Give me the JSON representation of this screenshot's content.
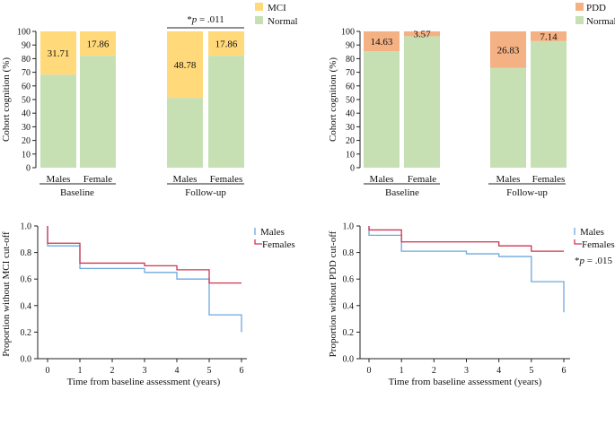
{
  "colors": {
    "normal": "#c6e0b4",
    "mci": "#ffd97a",
    "pdd": "#f4b183",
    "males_line": "#6fa8dc",
    "females_line": "#d0344f",
    "axis": "#222222"
  },
  "chart_data": [
    {
      "id": "mci_bars",
      "type": "bar",
      "stacked": true,
      "ylabel": "Cohort cognition (%)",
      "ylim": [
        0,
        100
      ],
      "yticks": [
        "0",
        "10",
        "20",
        "30",
        "40",
        "50",
        "60",
        "70",
        "80",
        "90",
        "100"
      ],
      "categories": [
        "Males",
        "Female",
        "Males",
        "Females"
      ],
      "groups": [
        "Baseline",
        "Follow-up"
      ],
      "series": [
        {
          "name": "Normal",
          "values": [
            68.29,
            82.14,
            51.22,
            82.14
          ]
        },
        {
          "name": "MCI",
          "values": [
            31.71,
            17.86,
            48.78,
            17.86
          ]
        }
      ],
      "data_labels": [
        "31.71",
        "17.86",
        "48.78",
        "17.86"
      ],
      "legend": [
        "MCI",
        "Normal"
      ],
      "annotation": {
        "star": "*",
        "p": "p",
        "rest": " = .011"
      }
    },
    {
      "id": "pdd_bars",
      "type": "bar",
      "stacked": true,
      "ylabel": "Cohort cognition (%)",
      "ylim": [
        0,
        100
      ],
      "yticks": [
        "0",
        "10",
        "20",
        "30",
        "40",
        "50",
        "60",
        "70",
        "80",
        "90",
        "100"
      ],
      "categories": [
        "Males",
        "Female",
        "Males",
        "Females"
      ],
      "groups": [
        "Baseline",
        "Follow-up"
      ],
      "series": [
        {
          "name": "Normal",
          "values": [
            85.37,
            96.43,
            73.17,
            92.86
          ]
        },
        {
          "name": "PDD",
          "values": [
            14.63,
            3.57,
            26.83,
            7.14
          ]
        }
      ],
      "data_labels": [
        "14.63",
        "3.57",
        "26.83",
        "7.14"
      ],
      "legend": [
        "PDD",
        "Normal"
      ]
    },
    {
      "id": "mci_km",
      "type": "line",
      "step": true,
      "xlabel": "Time from baseline assessment (years)",
      "ylabel": "Proportion without MCI cut-off",
      "xlim": [
        0,
        6
      ],
      "ylim": [
        0,
        1
      ],
      "xticks": [
        "0",
        "1",
        "2",
        "3",
        "4",
        "5",
        "6"
      ],
      "yticks": [
        "0.0",
        "0.2",
        "0.4",
        "0.6",
        "0.8",
        "1.0"
      ],
      "series": [
        {
          "name": "Males",
          "x": [
            0,
            0,
            1,
            3,
            4,
            5,
            6,
            6
          ],
          "y": [
            1.0,
            0.85,
            0.68,
            0.65,
            0.6,
            0.33,
            0.33,
            0.2
          ]
        },
        {
          "name": "Females",
          "x": [
            0,
            0,
            1,
            3,
            4,
            5,
            6
          ],
          "y": [
            1.0,
            0.87,
            0.72,
            0.7,
            0.67,
            0.57,
            0.57
          ]
        }
      ],
      "legend": [
        "Males",
        "Females"
      ]
    },
    {
      "id": "pdd_km",
      "type": "line",
      "step": true,
      "xlabel": "Time from baseline assessment (years)",
      "ylabel": "Proportion without PDD cut-off",
      "xlim": [
        0,
        6
      ],
      "ylim": [
        0,
        1
      ],
      "xticks": [
        "0",
        "1",
        "2",
        "3",
        "4",
        "5",
        "6"
      ],
      "yticks": [
        "0.0",
        "0.2",
        "0.4",
        "0.6",
        "0.8",
        "1.0"
      ],
      "series": [
        {
          "name": "Males",
          "x": [
            0,
            0,
            1,
            3,
            4,
            5,
            6,
            6
          ],
          "y": [
            1.0,
            0.93,
            0.81,
            0.79,
            0.77,
            0.58,
            0.58,
            0.35
          ]
        },
        {
          "name": "Females",
          "x": [
            0,
            0,
            1,
            4,
            5,
            6
          ],
          "y": [
            1.0,
            0.97,
            0.88,
            0.85,
            0.81,
            0.81
          ]
        }
      ],
      "legend": [
        "Males",
        "Females"
      ],
      "annotation": {
        "star": "*",
        "p": "p",
        "rest": " = .015"
      }
    }
  ]
}
